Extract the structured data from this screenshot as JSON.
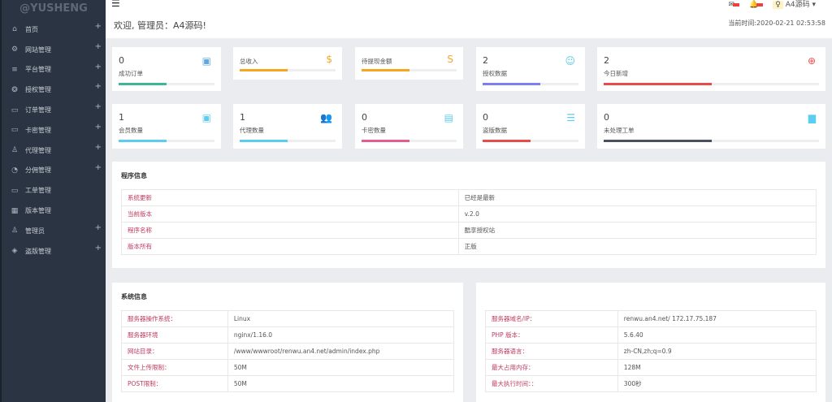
{
  "sidebar": {
    "brand": "@YUSHENG",
    "items": [
      {
        "label": "首页",
        "icon": "home-icon",
        "glyph": "⌂",
        "plus": true
      },
      {
        "label": "网站管理",
        "icon": "gear-icon",
        "glyph": "⚙",
        "plus": true
      },
      {
        "label": "平台管理",
        "icon": "list-icon",
        "glyph": "≡",
        "plus": true
      },
      {
        "label": "授权管理",
        "icon": "aperture-icon",
        "glyph": "❂",
        "plus": true
      },
      {
        "label": "订单管理",
        "icon": "folder-icon",
        "glyph": "▭",
        "plus": true
      },
      {
        "label": "卡密管理",
        "icon": "folder-open-icon",
        "glyph": "▭",
        "plus": true
      },
      {
        "label": "代理管理",
        "icon": "user-group-icon",
        "glyph": "♙",
        "plus": true
      },
      {
        "label": "分佣管理",
        "icon": "pie-icon",
        "glyph": "◔",
        "plus": true
      },
      {
        "label": "工单管理",
        "icon": "monitor-icon",
        "glyph": "▭",
        "plus": false
      },
      {
        "label": "版本管理",
        "icon": "grid-icon",
        "glyph": "▦",
        "plus": false
      },
      {
        "label": "管理员",
        "icon": "user-icon",
        "glyph": "♙",
        "plus": true
      },
      {
        "label": "盗版管理",
        "icon": "layers-icon",
        "glyph": "◈",
        "plus": true
      }
    ]
  },
  "header": {
    "welcome": "欢迎, 管理员：A4源码!",
    "time": "当前时间:2020-02-21 02:53:58",
    "user": "A4源码"
  },
  "stats": [
    {
      "value": "0",
      "label": "成功订单",
      "icon": "calendar-icon",
      "glyph": "▣",
      "color": "#3ab795",
      "icon_color": "#5aa9e6",
      "progress": 0.5
    },
    {
      "value": "",
      "label": "总收入",
      "icon": "dollar-icon",
      "glyph": "$",
      "color": "#f5a623",
      "icon_color": "#f5a623",
      "progress": 0.5
    },
    {
      "value": "",
      "label": "待提现金额",
      "icon": "strikethrough-icon",
      "glyph": "S",
      "color": "#f5a623",
      "icon_color": "#f5a623",
      "progress": 0.5
    },
    {
      "value": "2",
      "label": "授权数据",
      "icon": "user-sync-icon",
      "glyph": "☺",
      "color": "#7b7ff5",
      "icon_color": "#5ac8e6",
      "progress": 0.6
    },
    {
      "value": "2",
      "label": "今日新增",
      "icon": "login-icon",
      "glyph": "⊕",
      "color": "#e94b4b",
      "icon_color": "#e94b4b",
      "progress": 0.5
    },
    {
      "value": "1",
      "label": "会员数量",
      "icon": "contact-icon",
      "glyph": "▣",
      "color": "#5bcdf0",
      "icon_color": "#5bcdf0",
      "progress": 0.5
    },
    {
      "value": "1",
      "label": "代理数量",
      "icon": "users-icon",
      "glyph": "👥",
      "color": "#5bcdf0",
      "icon_color": "#5bcdf0",
      "progress": 0.5
    },
    {
      "value": "0",
      "label": "卡密数量",
      "icon": "card-icon",
      "glyph": "▤",
      "color": "#e35d8f",
      "icon_color": "#5bcdf0",
      "progress": 0.5
    },
    {
      "value": "0",
      "label": "盗版数据",
      "icon": "database-icon",
      "glyph": "☰",
      "color": "#e94b4b",
      "icon_color": "#5bcdf0",
      "progress": 0.5
    },
    {
      "value": "0",
      "label": "未处理工单",
      "icon": "document-icon",
      "glyph": "▆",
      "color": "#4a5060",
      "icon_color": "#5bcdf0",
      "progress": 0.5
    }
  ],
  "program": {
    "title": "程序信息",
    "rows": [
      [
        "系统更新",
        "已经是最新"
      ],
      [
        "当前版本",
        "v.2.0"
      ],
      [
        "程序名称",
        "酷享授权站"
      ],
      [
        "版本所有",
        "正版"
      ]
    ]
  },
  "system": {
    "title": "系统信息",
    "rows": [
      [
        "服务器操作系统：",
        "Linux"
      ],
      [
        "服务器环境",
        "nginx/1.16.0"
      ],
      [
        "网站目录：",
        "/www/wwwroot/renwu.an4.net/admin/index.php"
      ],
      [
        "文件上传限制：",
        "50M"
      ],
      [
        "POST限制：",
        "50M"
      ]
    ]
  },
  "server": {
    "rows": [
      [
        "服务器域名/IP：",
        "renwu.an4.net/ 172.17.75.187"
      ],
      [
        "PHP 版本：",
        "5.6.40"
      ],
      [
        "服务器语言：",
        "zh-CN,zh;q=0.9"
      ],
      [
        "最大占用内存：",
        "128M"
      ],
      [
        "最大执行时间：：",
        "300秒"
      ]
    ]
  }
}
